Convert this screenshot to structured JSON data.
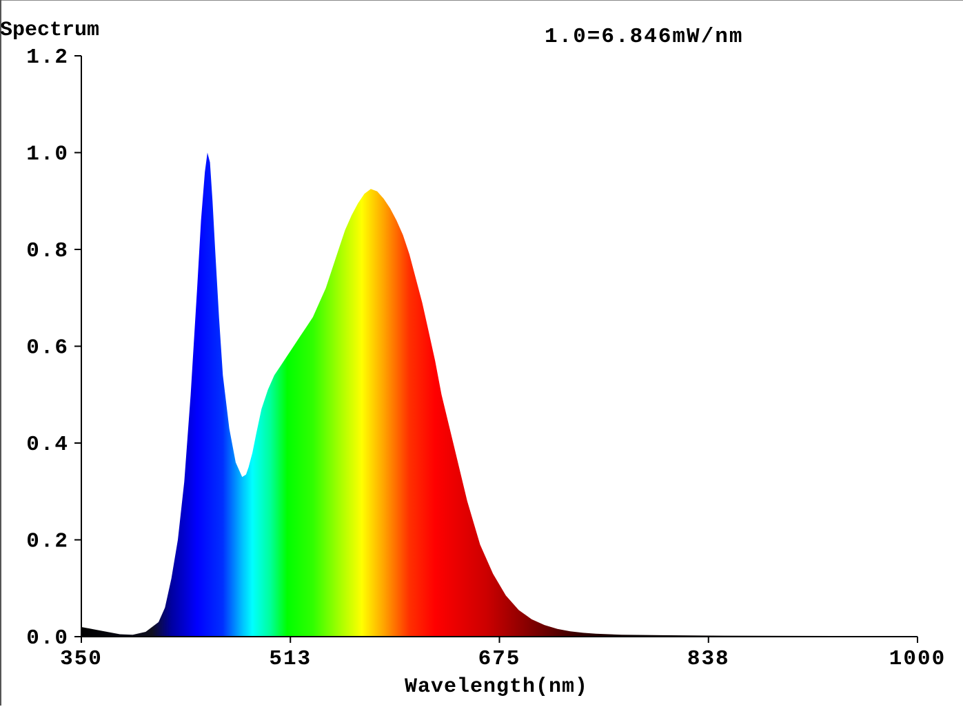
{
  "chart_data": {
    "type": "area",
    "title": "Spectrum",
    "annotation": "1.0=6.846mW/nm",
    "xlabel": "Wavelength(nm)",
    "ylabel": "",
    "xlim": [
      350,
      1000
    ],
    "ylim": [
      0,
      1.2
    ],
    "x_ticks": [
      "350",
      "513",
      "675",
      "838",
      "1000"
    ],
    "y_ticks": [
      "0.0",
      "0.2",
      "0.4",
      "0.6",
      "0.8",
      "1.0",
      "1.2"
    ],
    "grid": false,
    "fill": "visible-spectrum colour gradient by wavelength",
    "series": [
      {
        "x": [
          350,
          360,
          370,
          380,
          390,
          400,
          410,
          415,
          420,
          425,
          430,
          435,
          440,
          443,
          446,
          448,
          450,
          452,
          454,
          457,
          460,
          465,
          470,
          475,
          478,
          480,
          483,
          486,
          490,
          495,
          500,
          505,
          510,
          515,
          520,
          525,
          530,
          535,
          540,
          545,
          550,
          555,
          560,
          565,
          570,
          575,
          580,
          585,
          590,
          595,
          600,
          605,
          610,
          615,
          620,
          625,
          630,
          640,
          650,
          660,
          670,
          680,
          690,
          700,
          710,
          720,
          730,
          740,
          750,
          770,
          800,
          850,
          900,
          1000
        ],
        "y": [
          0.02,
          0.015,
          0.01,
          0.005,
          0.004,
          0.01,
          0.03,
          0.06,
          0.12,
          0.2,
          0.32,
          0.5,
          0.72,
          0.86,
          0.96,
          1.0,
          0.98,
          0.9,
          0.8,
          0.66,
          0.54,
          0.43,
          0.36,
          0.33,
          0.335,
          0.35,
          0.38,
          0.42,
          0.47,
          0.51,
          0.54,
          0.56,
          0.58,
          0.6,
          0.62,
          0.64,
          0.66,
          0.69,
          0.72,
          0.76,
          0.8,
          0.84,
          0.87,
          0.895,
          0.915,
          0.925,
          0.92,
          0.905,
          0.885,
          0.86,
          0.83,
          0.79,
          0.74,
          0.69,
          0.63,
          0.57,
          0.5,
          0.39,
          0.28,
          0.19,
          0.13,
          0.085,
          0.055,
          0.036,
          0.024,
          0.016,
          0.011,
          0.008,
          0.006,
          0.004,
          0.003,
          0.002,
          0.0015,
          0.001
        ]
      }
    ]
  }
}
